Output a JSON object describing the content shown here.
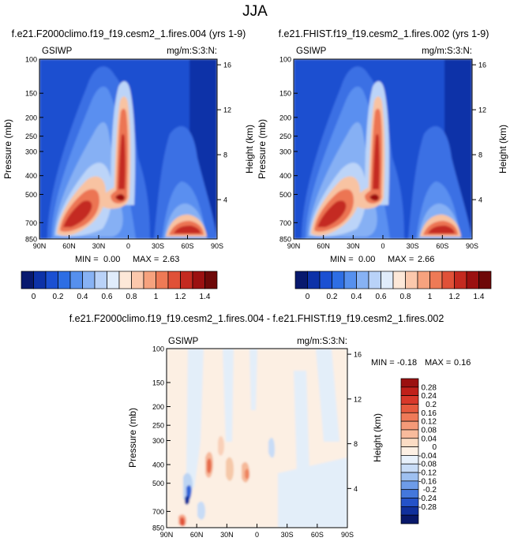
{
  "page": {
    "title": "JJA"
  },
  "chart_data": [
    {
      "type": "heatmap",
      "title": "f.e21.F2000climo.f19_f19.cesm2_1.fires.004 (yrs 1-9)",
      "left_label": "GSIWP",
      "right_label": "mg/m:S:3:N:",
      "xlabel": "",
      "ylabel": "Pressure (mb)",
      "ylabel_right": "Height (km)",
      "x_ticks": [
        "90N",
        "60N",
        "30N",
        "0",
        "30S",
        "60S",
        "90S"
      ],
      "y_ticks": [
        "100",
        "150",
        "200",
        "250",
        "300",
        "400",
        "500",
        "700",
        "850"
      ],
      "y_ticks_right": [
        "16",
        "12",
        "8",
        "4"
      ],
      "stats": {
        "min_label": "MIN =",
        "min": "0.00",
        "max_label": "MAX =",
        "max": "2.63"
      },
      "colorbar": {
        "orientation": "horizontal",
        "labels": [
          "0",
          "0.2",
          "0.4",
          "0.6",
          "0.8",
          "1",
          "1.2",
          "1.4"
        ],
        "colors": [
          "#08196e",
          "#0d32a8",
          "#1b50d2",
          "#2e6ee4",
          "#5690ee",
          "#87b2f4",
          "#b9d2f8",
          "#e0ecfb",
          "#fde8d8",
          "#fbc8ac",
          "#f6a27e",
          "#ee7a56",
          "#e05138",
          "#c42a20",
          "#9b1010",
          "#6e0808"
        ]
      }
    },
    {
      "type": "heatmap",
      "title": "f.e21.FHIST.f19_f19.cesm2_1.fires.002 (yrs 1-9)",
      "left_label": "GSIWP",
      "right_label": "mg/m:S:3:N:",
      "xlabel": "",
      "ylabel": "Pressure (mb)",
      "ylabel_right": "Height (km)",
      "x_ticks": [
        "90N",
        "60N",
        "30N",
        "0",
        "30S",
        "60S",
        "90S"
      ],
      "y_ticks": [
        "100",
        "150",
        "200",
        "250",
        "300",
        "400",
        "500",
        "700",
        "850"
      ],
      "y_ticks_right": [
        "16",
        "12",
        "8",
        "4"
      ],
      "stats": {
        "min_label": "MIN =",
        "min": "0.00",
        "max_label": "MAX =",
        "max": "2.66"
      },
      "colorbar": {
        "orientation": "horizontal",
        "labels": [
          "0",
          "0.2",
          "0.4",
          "0.6",
          "0.8",
          "1",
          "1.2",
          "1.4"
        ],
        "colors": [
          "#08196e",
          "#0d32a8",
          "#1b50d2",
          "#2e6ee4",
          "#5690ee",
          "#87b2f4",
          "#b9d2f8",
          "#e0ecfb",
          "#fde8d8",
          "#fbc8ac",
          "#f6a27e",
          "#ee7a56",
          "#e05138",
          "#c42a20",
          "#9b1010",
          "#6e0808"
        ]
      }
    },
    {
      "type": "heatmap",
      "title": "f.e21.F2000climo.f19_f19.cesm2_1.fires.004 - f.e21.FHIST.f19_f19.cesm2_1.fires.002",
      "left_label": "GSIWP",
      "right_label": "mg/m:S:3:N:",
      "xlabel": "",
      "ylabel": "Pressure (mb)",
      "ylabel_right": "Height (km)",
      "x_ticks": [
        "90N",
        "60N",
        "30N",
        "0",
        "30S",
        "60S",
        "90S"
      ],
      "y_ticks": [
        "100",
        "150",
        "200",
        "250",
        "300",
        "400",
        "500",
        "700",
        "850"
      ],
      "y_ticks_right": [
        "16",
        "12",
        "8",
        "4"
      ],
      "stats": {
        "min_label": "MIN =",
        "min": "-0.18",
        "max_label": "MAX =",
        "max": "0.16"
      },
      "colorbar": {
        "orientation": "vertical",
        "labels": [
          "0.28",
          "0.24",
          "0.2",
          "0.16",
          "0.12",
          "0.08",
          "0.04",
          "0",
          "-0.04",
          "-0.08",
          "-0.12",
          "-0.16",
          "-0.2",
          "-0.24",
          "-0.28"
        ],
        "colors": [
          "#9b1010",
          "#c0201a",
          "#d8382a",
          "#e65a3e",
          "#ef7a58",
          "#f49a78",
          "#f8bb9c",
          "#fbdcc4",
          "#fdf0e4",
          "#e8f1fb",
          "#c8dcf6",
          "#9ec0f0",
          "#6e9ce8",
          "#4478dc",
          "#2452c8",
          "#10309c",
          "#08186a"
        ]
      }
    }
  ]
}
